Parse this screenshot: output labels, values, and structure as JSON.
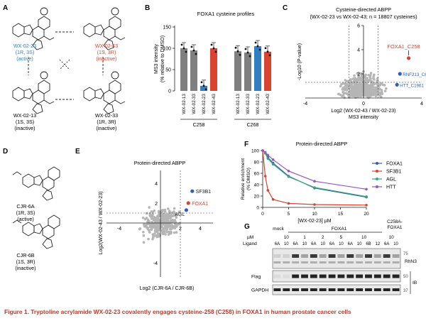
{
  "panels": {
    "A": "A",
    "B": "B",
    "C": "C",
    "D": "D",
    "E": "E",
    "F": "F",
    "G": "G"
  },
  "panel_a": {
    "compounds": [
      {
        "name": "WX-02-23",
        "stereo": "(1R, 3S)",
        "status": "(active)",
        "color": "#2f7fc1"
      },
      {
        "name": "WX-02-43",
        "stereo": "(1S, 3R)",
        "status": "(inactive)",
        "color": "#d9432f"
      },
      {
        "name": "WX-02-13",
        "stereo": "(1S, 3S)",
        "status": "(inactive)",
        "color": "#222222"
      },
      {
        "name": "WX-02-33",
        "stereo": "(1R, 3R)",
        "status": "(inactive)",
        "color": "#222222"
      }
    ]
  },
  "panel_d": {
    "compounds": [
      {
        "name": "CJR-6A",
        "stereo": "(1R, 3S)",
        "status": "(active)"
      },
      {
        "name": "CJR-6B",
        "stereo": "(1S, 3R)",
        "status": "(inactive)"
      }
    ]
  },
  "chart_data": [
    {
      "panel": "B",
      "type": "bar",
      "title": "FOXA1 cysteine profiles",
      "ylabel": "MS3 intensity\n(% relative to DMSO)",
      "ylim": [
        0,
        150
      ],
      "yticks": [
        0,
        50,
        100,
        150
      ],
      "groups": [
        {
          "name": "C258",
          "categories": [
            "WX-02-13",
            "WX-02-33",
            "WX-02-23",
            "WX-02-43"
          ],
          "values": [
            100,
            95,
            12,
            100
          ],
          "colors": [
            "#7f7f7f",
            "#7f7f7f",
            "#2f7fc1",
            "#d9432f"
          ]
        },
        {
          "name": "C268",
          "categories": [
            "WX-02-13",
            "WX-02-33",
            "WX-02-23",
            "WX-02-43"
          ],
          "values": [
            93,
            90,
            105,
            92
          ],
          "colors": [
            "#7f7f7f",
            "#7f7f7f",
            "#2f7fc1",
            "#d9432f"
          ]
        }
      ]
    },
    {
      "panel": "C",
      "type": "scatter",
      "title": "Cysteine-directed ABPP",
      "subtitle": "(WX-02-23 vs WX-02-43; n = 18807 cysteines)",
      "xlabel": "Log2 (WX-02-43 / WX-02-23)",
      "xlabel2": "MS3 intensity",
      "ylabel": "-Log10 (P-value)",
      "xlim": [
        -4,
        4
      ],
      "ylim": [
        0,
        6
      ],
      "xticks": [
        -4,
        0,
        4
      ],
      "yticks": [
        2,
        4,
        6
      ],
      "highlights": [
        {
          "label": "FOXA1_C258",
          "x": 3.1,
          "y": 3.3,
          "color": "#d9432f"
        },
        {
          "label": "RNF213_C6149",
          "x": 2.5,
          "y": 2.0,
          "color": "#2f5fb3"
        },
        {
          "label": "HTT_C1961",
          "x": 2.3,
          "y": 1.1,
          "color": "#2f5fb3"
        }
      ]
    },
    {
      "panel": "E",
      "type": "scatter",
      "title": "Protein-directed ABPP",
      "xlabel": "Log2 (CJR-6A / CJR-6B)",
      "ylabel": "Log2(WX-02-43 / WX-02-23)",
      "xticks": [
        -4,
        2,
        4
      ],
      "yticks": [
        -4,
        2,
        4
      ],
      "highlights": [
        {
          "label": "SF3B1",
          "x": 3.2,
          "y": 3.2,
          "color": "#2f5fb3"
        },
        {
          "label": "FOXA1",
          "x": 2.8,
          "y": 2.0,
          "color": "#d9432f"
        },
        {
          "label": "AGL",
          "x": 2.6,
          "y": 1.3,
          "color": "#2f5fb3"
        }
      ]
    },
    {
      "panel": "F",
      "type": "line",
      "title": "Protein-directed ABPP",
      "xlabel": "[WX-02-23] µM",
      "ylabel": "Relative enrichment\n(% DMSO)",
      "xlim": [
        0,
        20
      ],
      "ylim": [
        0,
        100
      ],
      "xticks": [
        0,
        5,
        10,
        15,
        20
      ],
      "yticks": [
        0,
        20,
        40,
        60,
        80,
        100
      ],
      "x": [
        0,
        0.5,
        1,
        2,
        5,
        10,
        20
      ],
      "series": [
        {
          "name": "FOXA1",
          "color": "#2f5fb3",
          "values": [
            100,
            96,
            88,
            78,
            55,
            34,
            18
          ]
        },
        {
          "name": "SF3B1",
          "color": "#d9432f",
          "values": [
            100,
            55,
            30,
            14,
            7,
            5,
            4
          ]
        },
        {
          "name": "AGL",
          "color": "#3aa57a",
          "values": [
            100,
            95,
            86,
            76,
            54,
            35,
            19
          ]
        },
        {
          "name": "HTT",
          "color": "#9a55c4",
          "values": [
            100,
            97,
            92,
            84,
            64,
            46,
            32
          ]
        }
      ]
    }
  ],
  "panel_g": {
    "unit": "µM",
    "col_headers": {
      "mock": "mock",
      "foxa1": "FOXA1",
      "mutant": "C258A-\nFOXA1"
    },
    "conc_label": "µM",
    "ligand_label": "Ligand",
    "conc": [
      "10",
      "1",
      "2",
      "5",
      "10",
      "10"
    ],
    "ligands": [
      "6A",
      "10",
      "6A",
      "10",
      "6A",
      "10",
      "6A",
      "10",
      "6A",
      "10",
      "6B",
      "12",
      "6A",
      "10"
    ],
    "rows": [
      {
        "label": "",
        "side": "RhN3"
      },
      {
        "label": "Flag",
        "side": "IB"
      },
      {
        "label": "GAPDH",
        "side": ""
      }
    ],
    "mw": [
      "75",
      "50",
      "37"
    ]
  },
  "caption": "Figure 1.  Tryptoline acrylamide WX-02-23 covalently engages cysteine-258 (C258) in FOXA1 in human prostate cancer cells"
}
